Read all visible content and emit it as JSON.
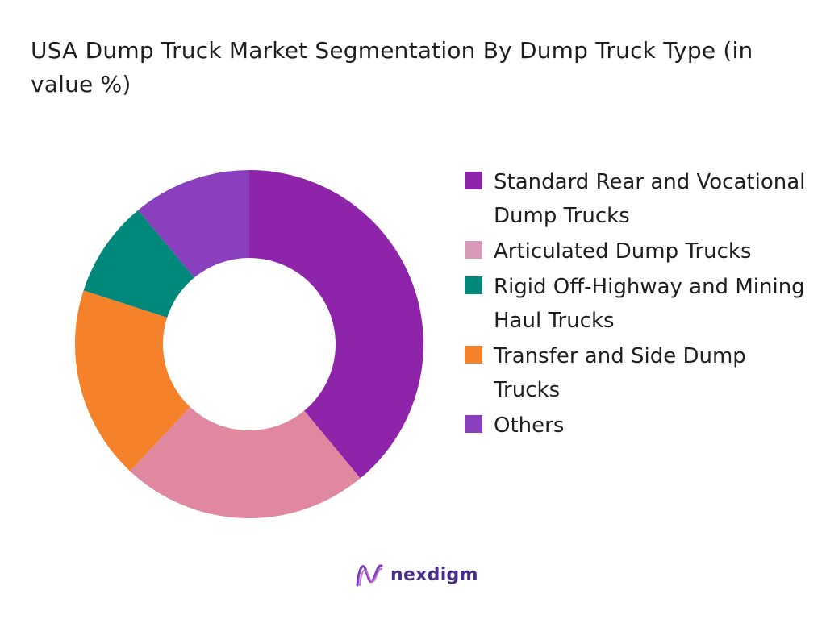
{
  "chart_data": {
    "type": "pie",
    "style": "donut",
    "title": "USA Dump Truck Market Segmentation By Dump Truck Type (in value %)",
    "categories": [
      "Standard Rear and Vocational Dump Trucks",
      "Articulated Dump Trucks",
      "Rigid Off-Highway and Mining Haul Trucks",
      "Transfer and Side Dump Trucks",
      "Others"
    ],
    "values": [
      39,
      23,
      18,
      9,
      11
    ],
    "slice_colors": [
      "#8e24aa",
      "#e0889f",
      "#f5822a",
      "#00897b",
      "#8a3fbe"
    ],
    "legend": {
      "position": "right",
      "entries": [
        {
          "label": "Standard Rear and Vocational Dump Trucks",
          "color": "#8e24aa"
        },
        {
          "label": "Articulated Dump Trucks",
          "color": "#d89ab6"
        },
        {
          "label": "Rigid Off-Highway and Mining Haul Trucks",
          "color": "#00897b"
        },
        {
          "label": "Transfer and Side Dump Trucks",
          "color": "#f5822a"
        },
        {
          "label": "Others",
          "color": "#8a3fbe"
        }
      ]
    }
  },
  "brand": {
    "name": "nexdigm",
    "logo_icon": "nexdigm-wave-logo",
    "color": "#4a2c8a"
  }
}
